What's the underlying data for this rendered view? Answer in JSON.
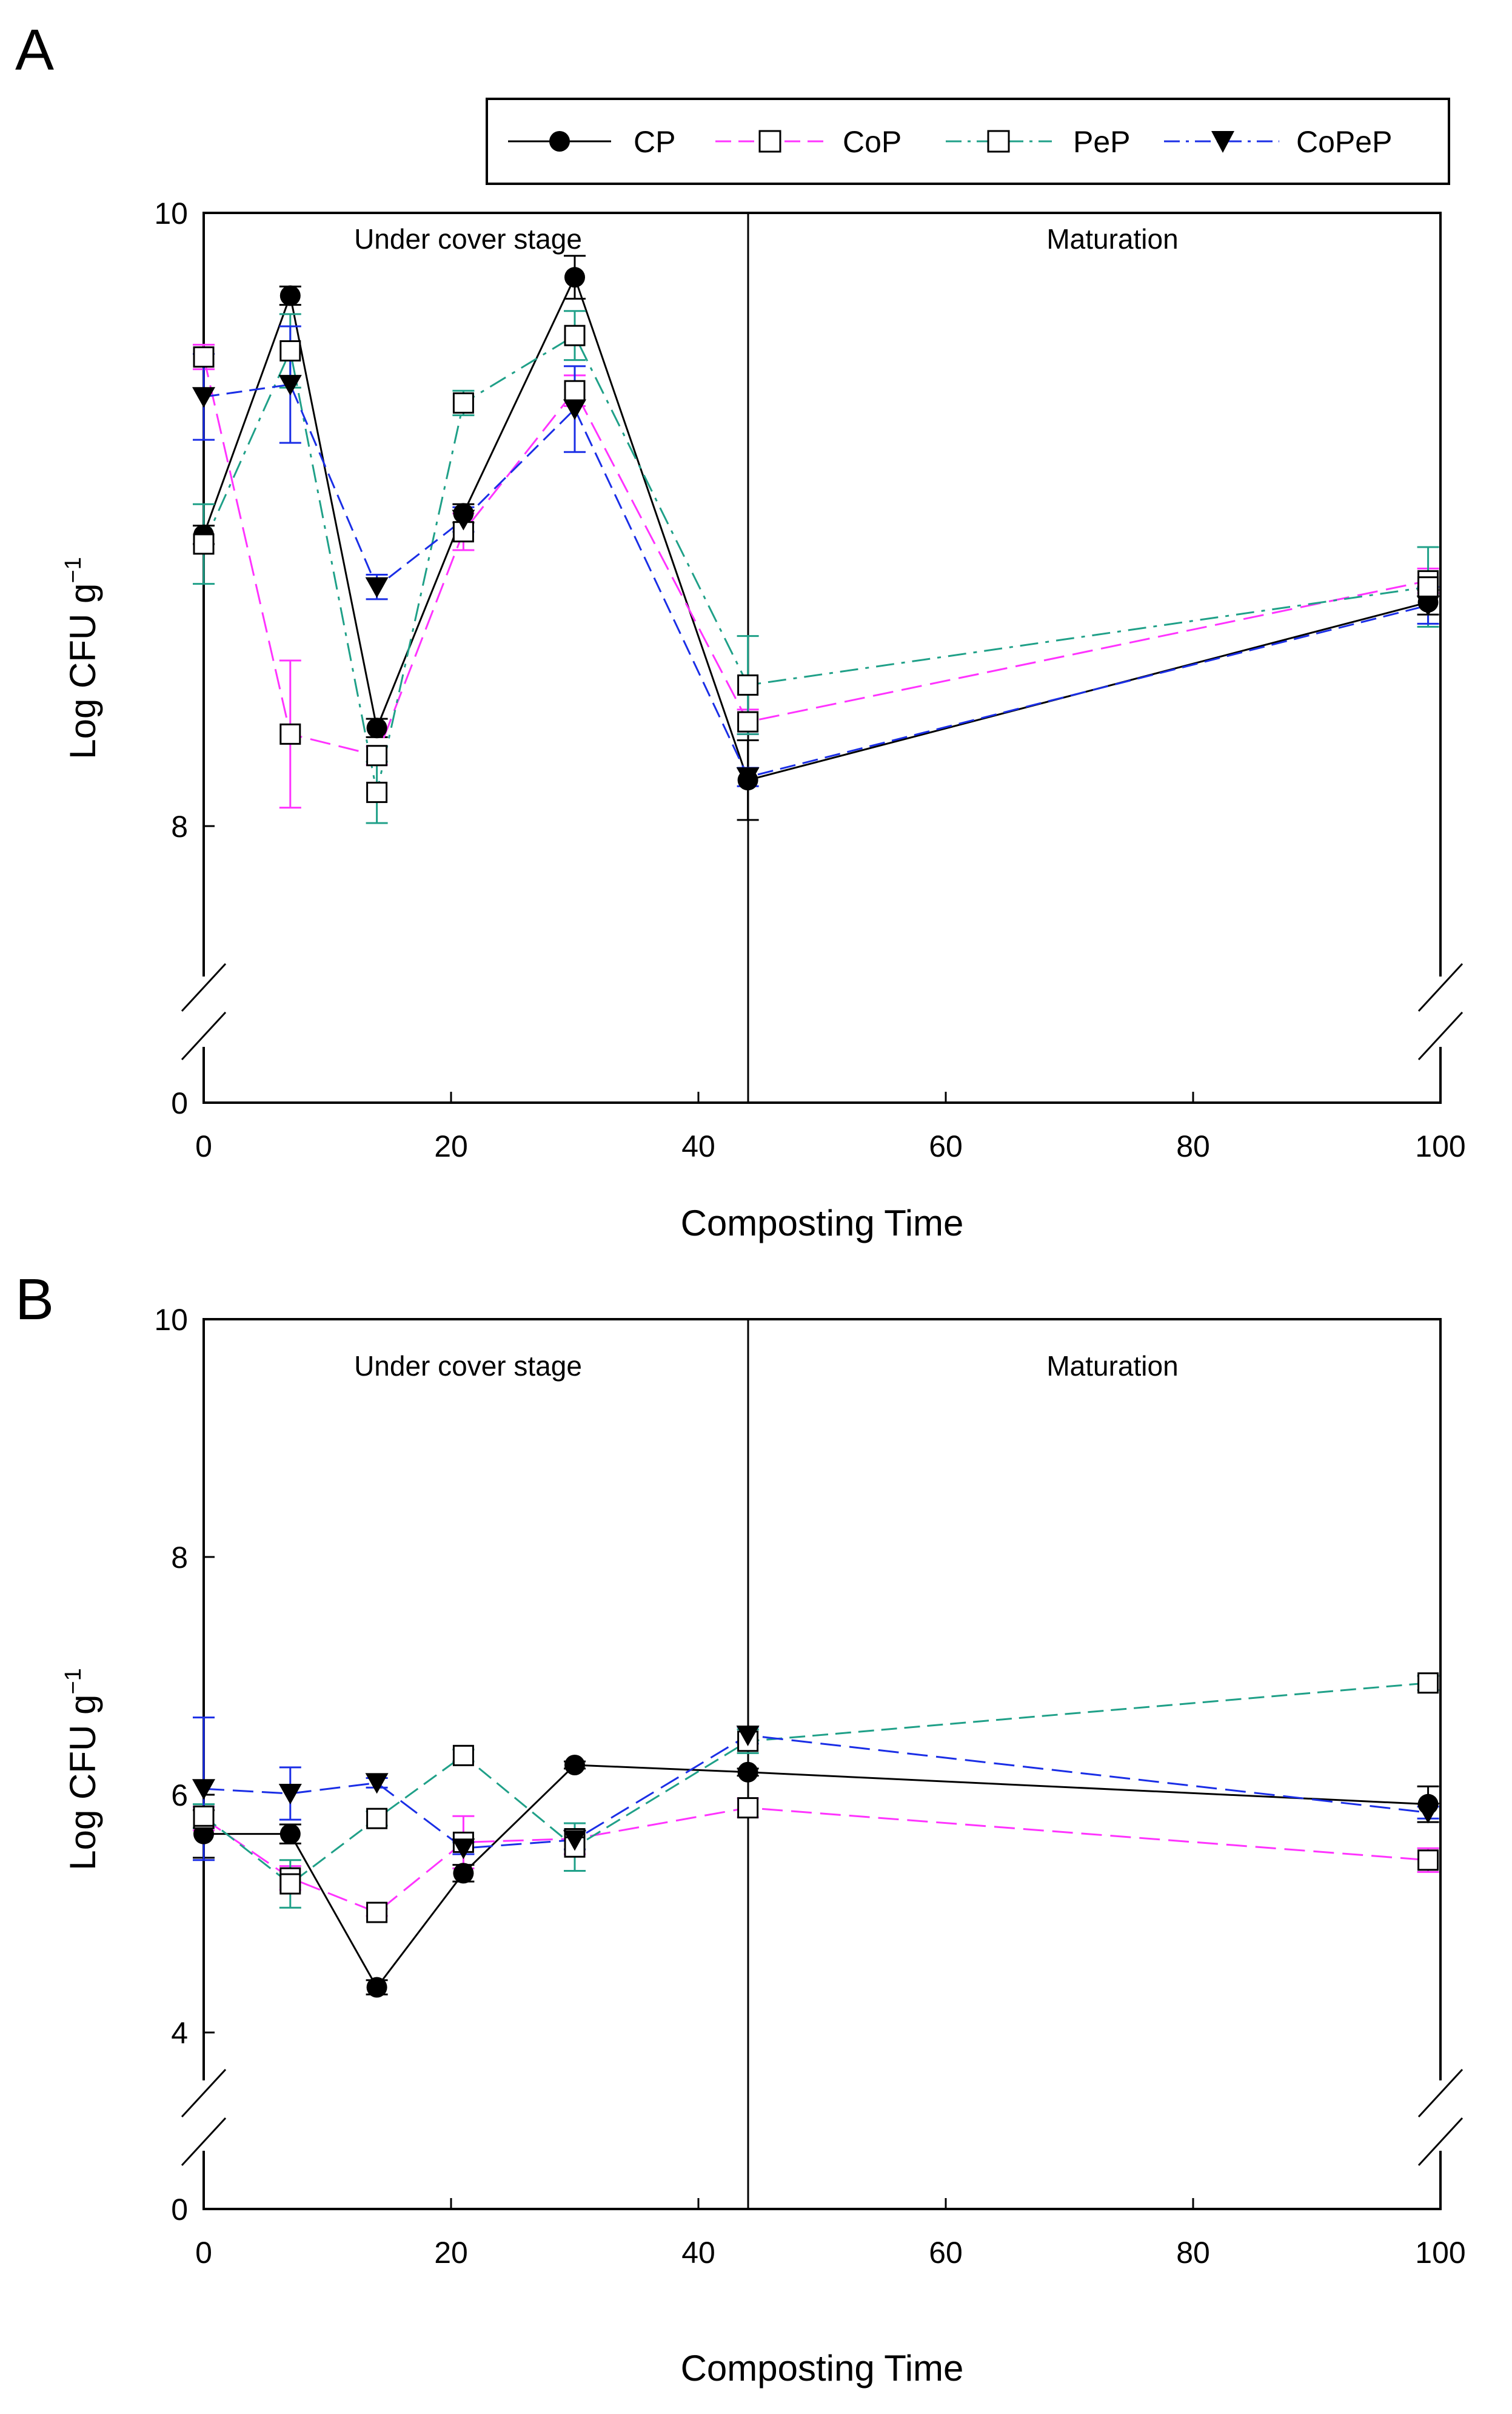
{
  "colors": {
    "CP": "#000000",
    "CoP": "#ff33ff",
    "PeP": "#1fa088",
    "CoPeP": "#1a2ee6"
  },
  "chart_data": [
    {
      "type": "line",
      "panel": "A",
      "xlabel": "Composting Time",
      "ylabel": "Log CFU g",
      "ylabel_superscript": "−1",
      "xlim": [
        0,
        100
      ],
      "ylim_upper": [
        7.1,
        10
      ],
      "ylim_lower": [
        0,
        0.9
      ],
      "axis_break": true,
      "x_ticks": [
        "0",
        "20",
        "40",
        "60",
        "80",
        "100"
      ],
      "y_ticks": [
        "0",
        "8",
        "10"
      ],
      "stage_divider_x": 44,
      "stage_labels": [
        "Under cover stage",
        "Maturation"
      ],
      "legend": [
        "CP",
        "CoP",
        "PeP",
        "CoPeP"
      ],
      "legend_position": "top",
      "series": [
        {
          "name": "CP",
          "marker": "circle",
          "dash": "solid",
          "x": [
            0,
            7,
            14,
            21,
            30,
            44,
            99
          ],
          "y": [
            8.95,
            9.73,
            8.32,
            9.02,
            9.79,
            8.15,
            8.73
          ],
          "err": [
            0.03,
            0.03,
            0.03,
            0.03,
            0.07,
            0.13,
            0.04
          ]
        },
        {
          "name": "CoP",
          "marker": "square-open",
          "dash": "long",
          "x": [
            0,
            7,
            14,
            21,
            30,
            44,
            99
          ],
          "y": [
            9.53,
            8.3,
            8.23,
            8.96,
            9.42,
            8.34,
            8.8
          ],
          "err": [
            0.04,
            0.24,
            0.03,
            0.06,
            0.05,
            0.04,
            0.04
          ]
        },
        {
          "name": "PeP",
          "marker": "square-open",
          "dash": "dashdot",
          "x": [
            0,
            7,
            14,
            21,
            30,
            44,
            99
          ],
          "y": [
            8.92,
            9.55,
            8.11,
            9.38,
            9.6,
            8.46,
            8.78
          ],
          "err": [
            0.13,
            0.12,
            0.1,
            0.04,
            0.08,
            0.16,
            0.13
          ]
        },
        {
          "name": "CoPeP",
          "marker": "triangle-down",
          "dash": "dashed",
          "x": [
            0,
            7,
            14,
            21,
            30,
            44,
            99
          ],
          "y": [
            9.4,
            9.44,
            8.78,
            9.0,
            9.36,
            8.16,
            8.72
          ],
          "err": [
            0.14,
            0.19,
            0.04,
            0.04,
            0.14,
            0.03,
            0.06
          ]
        }
      ]
    },
    {
      "type": "line",
      "panel": "B",
      "xlabel": "Composting Time",
      "ylabel": "Log CFU g",
      "ylabel_superscript": "−1",
      "xlim": [
        0,
        100
      ],
      "ylim_upper": [
        3.5,
        10
      ],
      "ylim_lower": [
        0,
        0.9
      ],
      "axis_break": true,
      "x_ticks": [
        "0",
        "20",
        "40",
        "60",
        "80",
        "100"
      ],
      "y_ticks": [
        "0",
        "4",
        "6",
        "8",
        "10"
      ],
      "stage_divider_x": 44,
      "stage_labels": [
        "Under cover stage",
        "Maturation"
      ],
      "legend": [
        "CP",
        "CoP",
        "PeP",
        "CoPeP"
      ],
      "series": [
        {
          "name": "CP",
          "marker": "circle",
          "dash": "solid",
          "x": [
            0,
            7,
            14,
            21,
            30,
            44,
            99
          ],
          "y": [
            5.67,
            5.67,
            4.38,
            5.34,
            6.25,
            6.19,
            5.92
          ],
          "err": [
            0.2,
            0.08,
            0.06,
            0.07,
            0.03,
            0.03,
            0.15
          ]
        },
        {
          "name": "CoP",
          "marker": "square-open",
          "dash": "long",
          "x": [
            0,
            7,
            14,
            21,
            30,
            44,
            99
          ],
          "y": [
            5.8,
            5.3,
            5.01,
            5.6,
            5.63,
            5.89,
            5.45
          ],
          "err": [
            0.1,
            0.1,
            0.03,
            0.22,
            0.13,
            0.08,
            0.1
          ]
        },
        {
          "name": "PeP",
          "marker": "square-open",
          "dash": "dashed",
          "x": [
            0,
            7,
            14,
            21,
            30,
            44,
            99
          ],
          "y": [
            5.82,
            5.25,
            5.8,
            6.33,
            5.56,
            6.45,
            6.94
          ],
          "err": [
            0.1,
            0.2,
            0.06,
            0.05,
            0.2,
            0.1,
            0.06
          ]
        },
        {
          "name": "CoPeP",
          "marker": "triangle-down",
          "dash": "long",
          "x": [
            0,
            7,
            14,
            21,
            30,
            44,
            99
          ],
          "y": [
            6.05,
            6.01,
            6.1,
            5.55,
            5.62,
            6.5,
            5.85
          ],
          "err": [
            0.6,
            0.22,
            0.04,
            0.05,
            0.08,
            0.07,
            0.05
          ]
        }
      ]
    }
  ]
}
